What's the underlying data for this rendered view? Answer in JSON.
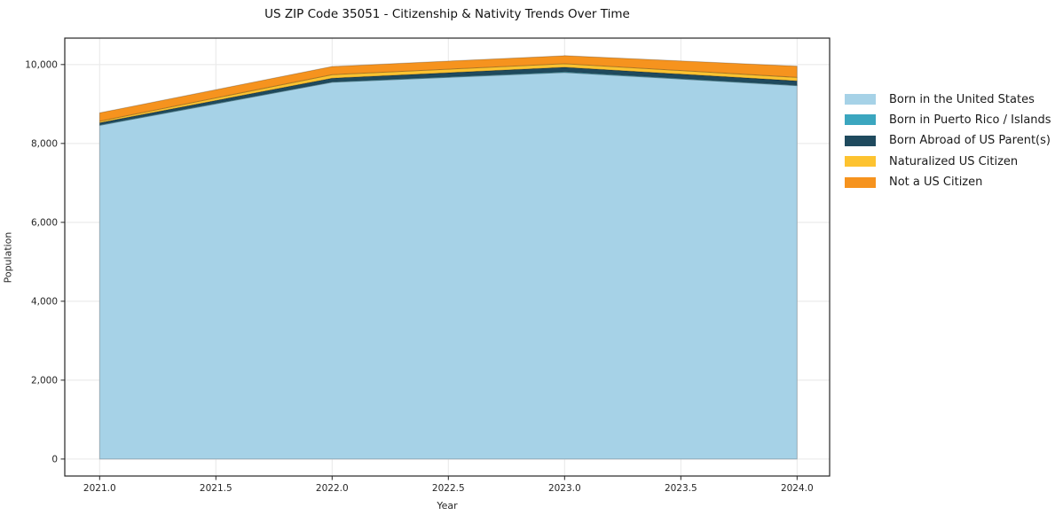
{
  "chart_data": {
    "type": "area",
    "stacked": true,
    "title": "US ZIP Code 35051 - Citizenship & Nativity Trends Over Time",
    "xlabel": "Year",
    "ylabel": "Population",
    "x": [
      2021,
      2022,
      2023,
      2024
    ],
    "series": [
      {
        "name": "Born in the United States",
        "color": "#A6D2E7",
        "values": [
          8460,
          9550,
          9800,
          9465
        ]
      },
      {
        "name": "Born in Puerto Rico / Islands",
        "color": "#3BA6BF",
        "values": [
          15,
          15,
          20,
          15
        ]
      },
      {
        "name": "Born Abroad of US Parent(s)",
        "color": "#1F4A5E",
        "values": [
          50,
          90,
          110,
          105
        ]
      },
      {
        "name": "Naturalized US Citizen",
        "color": "#FDC330",
        "values": [
          40,
          90,
          90,
          90
        ]
      },
      {
        "name": "Not a US Citizen",
        "color": "#F6931E",
        "values": [
          210,
          205,
          205,
          285
        ]
      }
    ],
    "x_ticks": [
      {
        "value": 2021.0,
        "label": "2021.0"
      },
      {
        "value": 2021.5,
        "label": "2021.5"
      },
      {
        "value": 2022.0,
        "label": "2022.0"
      },
      {
        "value": 2022.5,
        "label": "2022.5"
      },
      {
        "value": 2023.0,
        "label": "2023.0"
      },
      {
        "value": 2023.5,
        "label": "2023.5"
      },
      {
        "value": 2024.0,
        "label": "2024.0"
      }
    ],
    "y_ticks": [
      {
        "value": 0,
        "label": "0"
      },
      {
        "value": 2000,
        "label": "2,000"
      },
      {
        "value": 4000,
        "label": "4,000"
      },
      {
        "value": 6000,
        "label": "6,000"
      },
      {
        "value": 8000,
        "label": "8,000"
      },
      {
        "value": 10000,
        "label": "10,000"
      }
    ],
    "xlim": [
      2020.85,
      2024.14
    ],
    "ylim": [
      -430,
      10670
    ],
    "grid": true,
    "legend_position": "right-outside",
    "style": {
      "background": "#FFFFFF",
      "grid_color": "#E8E8E8",
      "axis_color": "#262626",
      "tick_text_color": "#262626",
      "title_color": "#111111",
      "area_edge_color": "rgba(0,0,0,0.22)"
    }
  }
}
